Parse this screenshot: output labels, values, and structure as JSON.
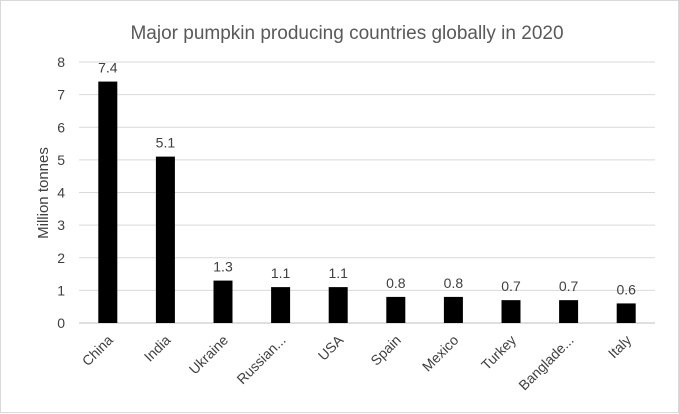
{
  "chart_data": {
    "type": "bar",
    "title": "Major pumpkin producing countries globally in 2020",
    "xlabel": "",
    "ylabel": "Million tonnes",
    "categories": [
      "China",
      "India",
      "Ukraine",
      "Russian...",
      "USA",
      "Spain",
      "Mexico",
      "Turkey",
      "Banglade...",
      "Italy"
    ],
    "values": [
      7.4,
      5.1,
      1.3,
      1.1,
      1.1,
      0.8,
      0.8,
      0.7,
      0.7,
      0.6
    ],
    "data_labels": [
      "7.4",
      "5.1",
      "1.3",
      "1.1",
      "1.1",
      "0.8",
      "0.8",
      "0.7",
      "0.7",
      "0.6"
    ],
    "ylim": [
      0,
      8
    ],
    "yticks": [
      "0",
      "1",
      "2",
      "3",
      "4",
      "5",
      "6",
      "7",
      "8"
    ],
    "grid": true,
    "bar_color": "#000000"
  }
}
